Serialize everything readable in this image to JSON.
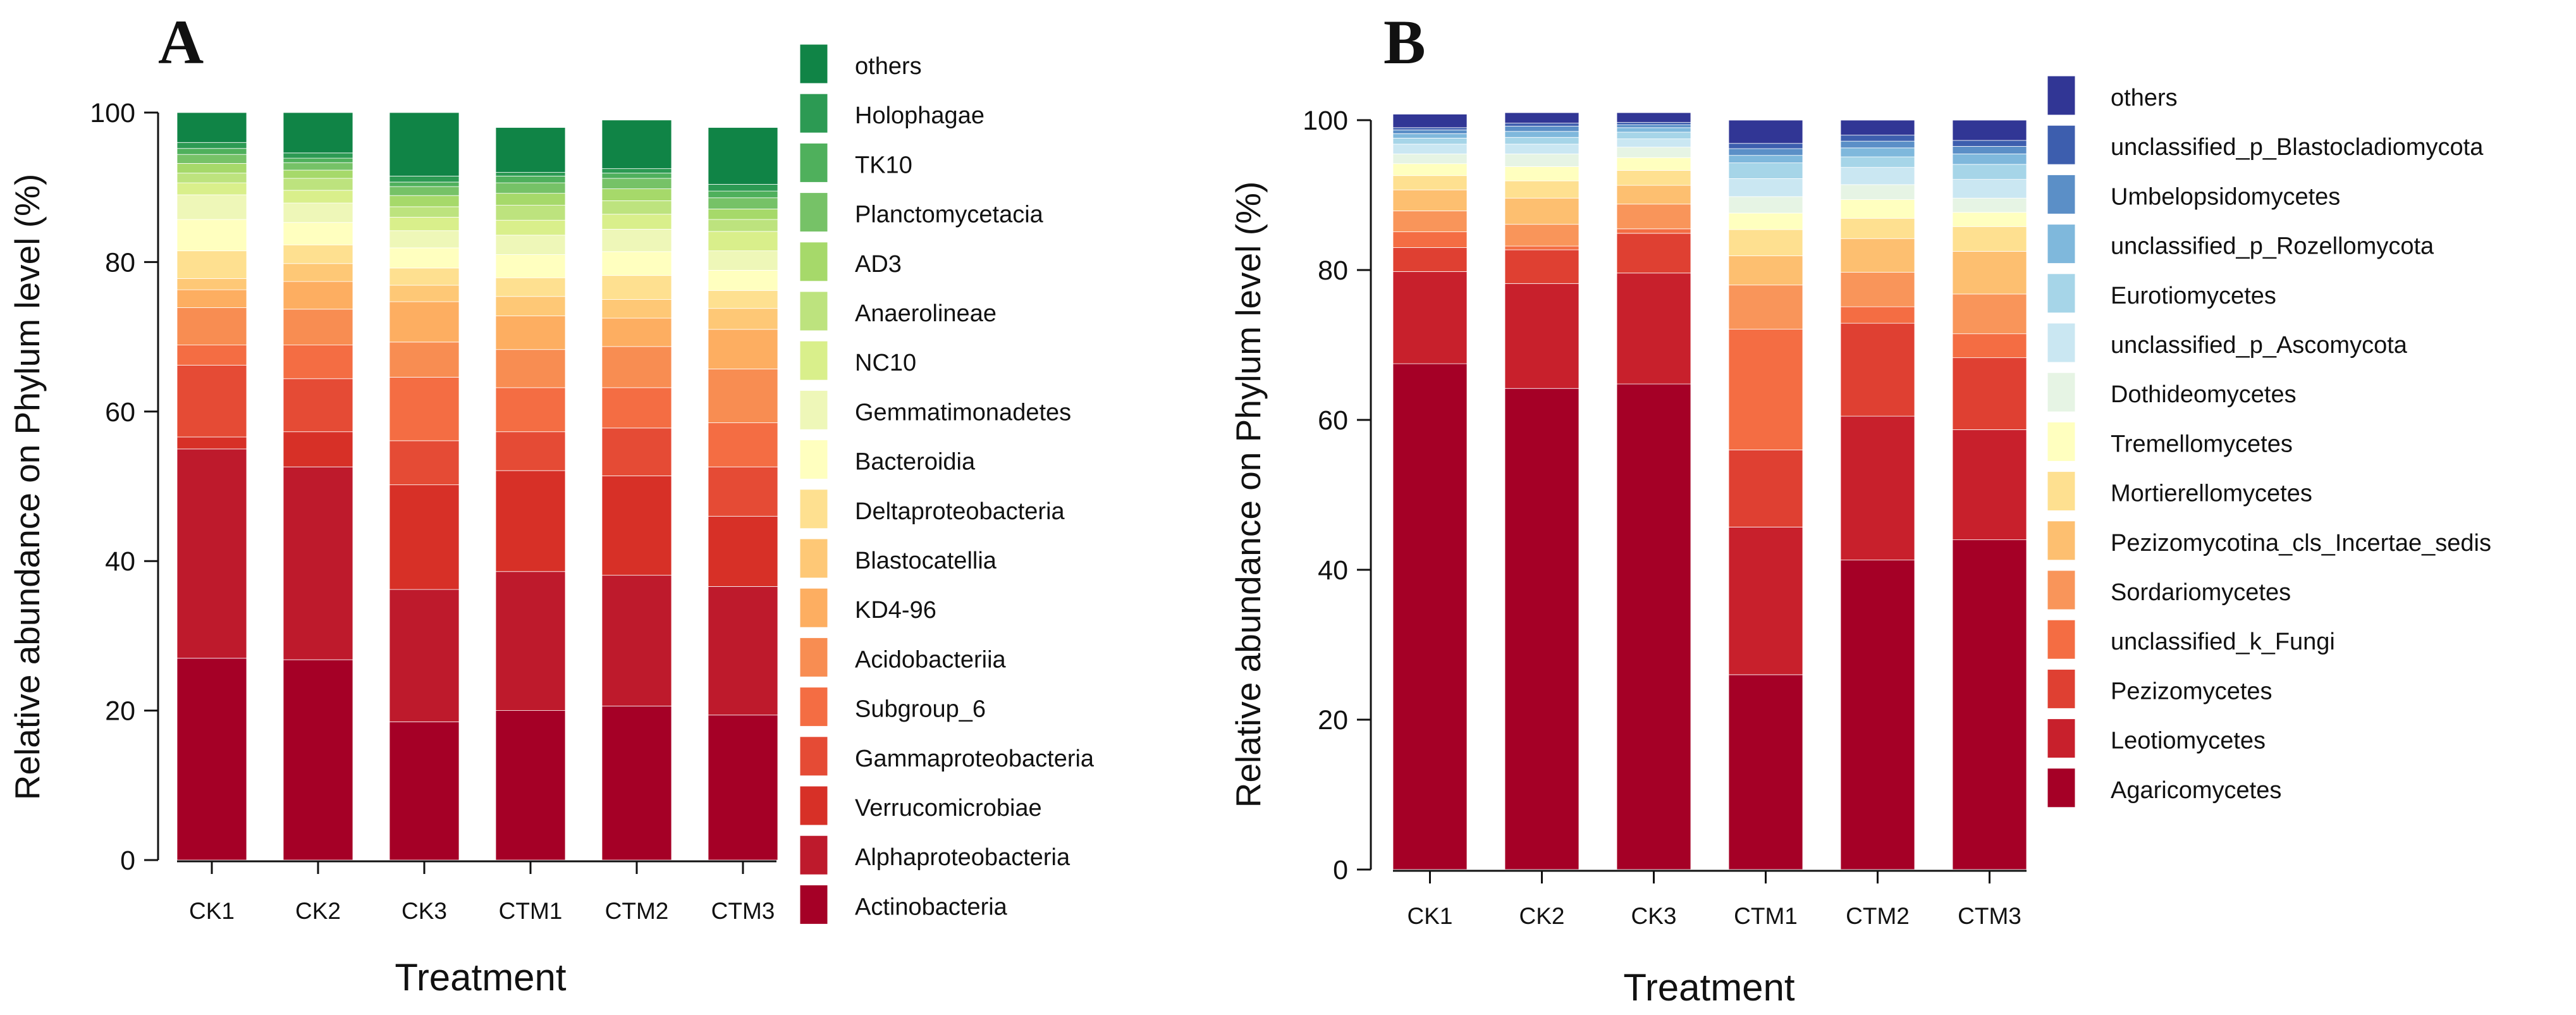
{
  "chart_data": [
    {
      "type": "bar",
      "stacked": true,
      "panel_label": "A",
      "title": "",
      "xlabel": "Treatment",
      "ylabel": "Relative abundance on Phylum level (%)",
      "ylim": [
        0,
        100
      ],
      "yticks": [
        0,
        20,
        40,
        60,
        80,
        100
      ],
      "categories": [
        "CK1",
        "CK2",
        "CK3",
        "CTM1",
        "CTM2",
        "CTM3"
      ],
      "legend_position": "right",
      "series": [
        {
          "name": "Actinobacteria",
          "color": "#a50026",
          "values": [
            27,
            26.8,
            18.5,
            20,
            20.6,
            19.4
          ]
        },
        {
          "name": "Alphaproteobacteria",
          "color": "#be1a2c",
          "values": [
            28,
            25.8,
            17.7,
            18.6,
            17.5,
            17.2
          ]
        },
        {
          "name": "Verrucomicrobiae",
          "color": "#d73027",
          "values": [
            1.6,
            4.7,
            14,
            13.5,
            13.3,
            9.4
          ]
        },
        {
          "name": "Gammaproteobacteria",
          "color": "#e54b35",
          "values": [
            9.6,
            7.1,
            5.9,
            5.2,
            6.4,
            6.6
          ]
        },
        {
          "name": "Subgroup_6",
          "color": "#f46d43",
          "values": [
            2.7,
            4.5,
            8.5,
            5.9,
            5.4,
            5.9
          ]
        },
        {
          "name": "Acidobacteriia",
          "color": "#f88d52",
          "values": [
            5,
            4.8,
            4.7,
            5.1,
            5.5,
            7.2
          ]
        },
        {
          "name": "KD4-96",
          "color": "#fdae61",
          "values": [
            2.4,
            3.7,
            5.4,
            4.5,
            3.8,
            5.3
          ]
        },
        {
          "name": "Blastocatellia",
          "color": "#fec876",
          "values": [
            1.5,
            2.4,
            2.2,
            2.6,
            2.5,
            2.8
          ]
        },
        {
          "name": "Deltaproteobacteria",
          "color": "#fee090",
          "values": [
            3.7,
            2.5,
            2.3,
            2.5,
            3.2,
            2.4
          ]
        },
        {
          "name": "Bacteroidia",
          "color": "#ffffbf",
          "values": [
            4.2,
            3,
            2.7,
            3.1,
            3.2,
            2.7
          ]
        },
        {
          "name": "Gemmatimonadetes",
          "color": "#eef7b8",
          "values": [
            3.3,
            2.6,
            2.3,
            2.6,
            3,
            2.6
          ]
        },
        {
          "name": "NC10",
          "color": "#d9ef8b",
          "values": [
            1.6,
            1.7,
            1.8,
            2,
            2,
            2.6
          ]
        },
        {
          "name": "Anaerolineae",
          "color": "#bde37e",
          "values": [
            1.3,
            1.6,
            1.4,
            2,
            1.8,
            1.6
          ]
        },
        {
          "name": "AD3",
          "color": "#a6d96a",
          "values": [
            1.3,
            1.1,
            1.5,
            1.6,
            1.6,
            1.4
          ]
        },
        {
          "name": "Planctomycetacia",
          "color": "#76c267",
          "values": [
            1.2,
            1,
            1.2,
            1.4,
            1.4,
            1.5
          ]
        },
        {
          "name": "TK10",
          "color": "#4fb05c",
          "values": [
            0.8,
            0.6,
            0.6,
            0.9,
            0.7,
            0.9
          ]
        },
        {
          "name": "Holophagae",
          "color": "#2c9a53",
          "values": [
            0.8,
            0.7,
            0.8,
            0.5,
            0.6,
            0.9
          ]
        },
        {
          "name": "others",
          "color": "#108446",
          "values": [
            4,
            5.4,
            8.5,
            6,
            6.5,
            7.6
          ]
        }
      ]
    },
    {
      "type": "bar",
      "stacked": true,
      "panel_label": "B",
      "title": "",
      "xlabel": "Treatment",
      "ylabel": "Relative abundance on Phylum level (%)",
      "ylim": [
        0,
        100
      ],
      "yticks": [
        0,
        20,
        40,
        60,
        80,
        100
      ],
      "categories": [
        "CK1",
        "CK2",
        "CK3",
        "CTM1",
        "CTM2",
        "CTM3"
      ],
      "legend_position": "right",
      "series": [
        {
          "name": "Agaricomycetes",
          "color": "#a50026",
          "values": [
            67.5,
            64.2,
            64.8,
            26,
            41.3,
            44
          ]
        },
        {
          "name": "Leotiomycetes",
          "color": "#c8202c",
          "values": [
            12.3,
            14,
            14.8,
            19.7,
            19.2,
            14.7
          ]
        },
        {
          "name": "Pezizomycetes",
          "color": "#df4032",
          "values": [
            3.2,
            4.5,
            5.3,
            10.3,
            12.4,
            9.6
          ]
        },
        {
          "name": "unclassified_k_Fungi",
          "color": "#f46d43",
          "values": [
            2.1,
            0.5,
            0.6,
            16.1,
            2.2,
            3.2
          ]
        },
        {
          "name": "Sordariomycetes",
          "color": "#f9955a",
          "values": [
            2.8,
            2.9,
            3.3,
            5.9,
            4.6,
            5.3
          ]
        },
        {
          "name": "Pezizomycotina_cls_Incertae_sedis",
          "color": "#fdbf70",
          "values": [
            2.8,
            3.5,
            2.5,
            3.9,
            4.5,
            5.7
          ]
        },
        {
          "name": "Mortierellomycetes",
          "color": "#fee090",
          "values": [
            1.9,
            2.3,
            2,
            3.5,
            2.7,
            3.3
          ]
        },
        {
          "name": "Tremellomycetes",
          "color": "#ffffbf",
          "values": [
            1.6,
            1.9,
            1.7,
            2.2,
            2.5,
            1.9
          ]
        },
        {
          "name": "Dothideomycetes",
          "color": "#e6f4e4",
          "values": [
            1.3,
            1.7,
            1.4,
            2.2,
            2,
            1.9
          ]
        },
        {
          "name": "unclassified_p_Ascomycota",
          "color": "#cae7f2",
          "values": [
            1.3,
            1.3,
            1.1,
            2.4,
            2.3,
            2.5
          ]
        },
        {
          "name": "Eurotiomycetes",
          "color": "#a6d5e8",
          "values": [
            0.8,
            0.9,
            0.9,
            2.1,
            1.4,
            2
          ]
        },
        {
          "name": "unclassified_p_Rozellomycota",
          "color": "#7fb8dc",
          "values": [
            0.6,
            0.8,
            0.6,
            1,
            1.2,
            1.4
          ]
        },
        {
          "name": "Umbelopsidomycetes",
          "color": "#5b8fc7",
          "values": [
            0.5,
            0.7,
            0.4,
            0.9,
            0.9,
            1
          ]
        },
        {
          "name": "unclassified_p_Blastocladiomycota",
          "color": "#3d5eae",
          "values": [
            0.3,
            0.4,
            0.3,
            0.7,
            0.8,
            0.8
          ]
        },
        {
          "name": "others",
          "color": "#313695",
          "values": [
            1.8,
            1.4,
            1.3,
            3.1,
            2,
            2.7
          ]
        }
      ]
    }
  ]
}
